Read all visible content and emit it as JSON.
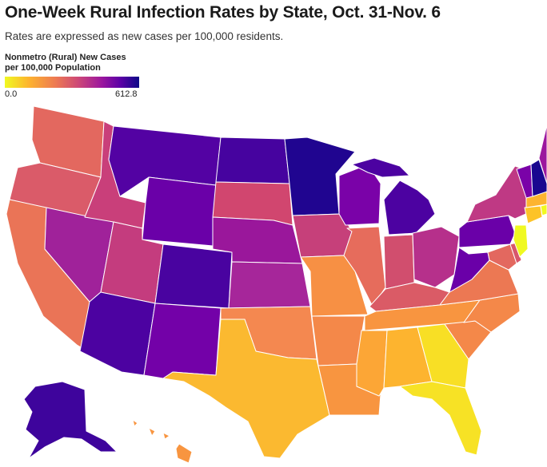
{
  "title": "One-Week Rural Infection Rates by State, Oct. 31-Nov. 6",
  "subtitle": "Rates are expressed as new cases per 100,000 residents.",
  "legend": {
    "title_line1": "Nonmetro (Rural) New Cases",
    "title_line2": "per 100,000 Population",
    "min_label": "0.0",
    "max_label": "612.8",
    "color_min": "#f0f921",
    "color_max": "#0d0887"
  },
  "states": [
    {
      "name": "Washington",
      "color": "#e3685f"
    },
    {
      "name": "Oregon",
      "color": "#da5b69"
    },
    {
      "name": "California",
      "color": "#ea7457"
    },
    {
      "name": "Nevada",
      "color": "#a0229a"
    },
    {
      "name": "Idaho",
      "color": "#c93f7a"
    },
    {
      "name": "Montana",
      "color": "#5302a3"
    },
    {
      "name": "Wyoming",
      "color": "#6a00a8"
    },
    {
      "name": "Utah",
      "color": "#c43c7e"
    },
    {
      "name": "Arizona",
      "color": "#4c02a1"
    },
    {
      "name": "Colorado",
      "color": "#4903a0"
    },
    {
      "name": "New Mexico",
      "color": "#7301a8"
    },
    {
      "name": "North Dakota",
      "color": "#46039f"
    },
    {
      "name": "South Dakota",
      "color": "#d1466f"
    },
    {
      "name": "Nebraska",
      "color": "#9a179b"
    },
    {
      "name": "Kansas",
      "color": "#a6269a"
    },
    {
      "name": "Oklahoma",
      "color": "#f48850"
    },
    {
      "name": "Texas",
      "color": "#fbb930"
    },
    {
      "name": "Minnesota",
      "color": "#200590"
    },
    {
      "name": "Iowa",
      "color": "#c6407a"
    },
    {
      "name": "Missouri",
      "color": "#f79044"
    },
    {
      "name": "Arkansas",
      "color": "#f48849"
    },
    {
      "name": "Louisiana",
      "color": "#f89540"
    },
    {
      "name": "Wisconsin",
      "color": "#7a02a8"
    },
    {
      "name": "Illinois",
      "color": "#e66c5c"
    },
    {
      "name": "Michigan",
      "color": "#4c02a1"
    },
    {
      "name": "Indiana",
      "color": "#d14e6e"
    },
    {
      "name": "Ohio",
      "color": "#b6308b"
    },
    {
      "name": "Kentucky",
      "color": "#da5b66"
    },
    {
      "name": "Tennessee",
      "color": "#f89540"
    },
    {
      "name": "Mississippi",
      "color": "#fca636"
    },
    {
      "name": "Alabama",
      "color": "#fdb42f"
    },
    {
      "name": "Georgia",
      "color": "#f8df25"
    },
    {
      "name": "Florida",
      "color": "#f7e225"
    },
    {
      "name": "South Carolina",
      "color": "#f48849"
    },
    {
      "name": "North Carolina",
      "color": "#f48849"
    },
    {
      "name": "Virginia",
      "color": "#ec7853"
    },
    {
      "name": "West Virginia",
      "color": "#6a00a8"
    },
    {
      "name": "Pennsylvania",
      "color": "#6a00a8"
    },
    {
      "name": "New York",
      "color": "#bf3984"
    },
    {
      "name": "Maryland",
      "color": "#e3685f"
    },
    {
      "name": "Delaware",
      "color": "#d8576b"
    },
    {
      "name": "New Jersey",
      "color": "#f0f921"
    },
    {
      "name": "Connecticut",
      "color": "#fdc328"
    },
    {
      "name": "Massachusetts",
      "color": "#fdb42f"
    },
    {
      "name": "Rhode Island",
      "color": "#f0f921"
    },
    {
      "name": "Vermont",
      "color": "#7a02a8"
    },
    {
      "name": "New Hampshire",
      "color": "#1a0790"
    },
    {
      "name": "Maine",
      "color": "#9c179e"
    },
    {
      "name": "Alaska",
      "color": "#3e049c"
    },
    {
      "name": "Hawaii",
      "color": "#f89540"
    }
  ]
}
